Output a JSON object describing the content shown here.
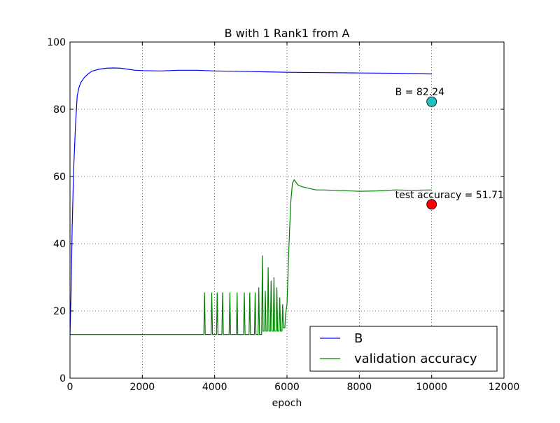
{
  "chart_data": {
    "type": "line",
    "title": "B with 1 Rank1 from A",
    "xlabel": "epoch",
    "ylabel": "",
    "xlim": [
      0,
      12000
    ],
    "ylim": [
      0,
      100
    ],
    "xticks": [
      0,
      2000,
      4000,
      6000,
      8000,
      10000,
      12000
    ],
    "yticks": [
      0,
      20,
      40,
      60,
      80,
      100
    ],
    "xtick_labels": [
      "0",
      "2000",
      "4000",
      "6000",
      "8000",
      "10000",
      "12000"
    ],
    "ytick_labels": [
      "0",
      "20",
      "40",
      "60",
      "80",
      "100"
    ],
    "grid": true,
    "legend_position": "lower-right",
    "series": [
      {
        "name": "B",
        "color": "#0000ff",
        "x": [
          0,
          30,
          60,
          100,
          150,
          200,
          250,
          300,
          400,
          500,
          600,
          800,
          1000,
          1200,
          1400,
          1600,
          1800,
          2000,
          2500,
          3000,
          3500,
          4000,
          5000,
          6000,
          7000,
          8000,
          9000,
          10000
        ],
        "y": [
          13,
          25,
          45,
          62,
          75,
          84,
          86.5,
          88,
          89.5,
          90.5,
          91.3,
          91.9,
          92.2,
          92.3,
          92.2,
          91.9,
          91.6,
          91.5,
          91.4,
          91.6,
          91.6,
          91.4,
          91.2,
          91.0,
          90.9,
          90.8,
          90.7,
          90.5
        ]
      },
      {
        "name": "validation accuracy",
        "color": "#008000",
        "x": [
          0,
          1000,
          2000,
          3000,
          3600,
          3700,
          3720,
          3740,
          3900,
          3920,
          3940,
          4050,
          4070,
          4090,
          4200,
          4220,
          4240,
          4400,
          4420,
          4440,
          4600,
          4620,
          4640,
          4800,
          4820,
          4840,
          4950,
          4970,
          4990,
          5100,
          5120,
          5140,
          5200,
          5220,
          5240,
          5300,
          5320,
          5340,
          5380,
          5400,
          5420,
          5460,
          5480,
          5500,
          5540,
          5560,
          5580,
          5620,
          5640,
          5660,
          5700,
          5720,
          5740,
          5780,
          5800,
          5820,
          5860,
          5880,
          5900,
          5940,
          5960,
          6000,
          6050,
          6100,
          6150,
          6200,
          6300,
          6400,
          6600,
          6800,
          7000,
          7500,
          8000,
          8500,
          9000,
          9500,
          10000
        ],
        "y": [
          13,
          13,
          13,
          13,
          13,
          13,
          25.5,
          13,
          13,
          25.5,
          13,
          13,
          25.5,
          13,
          13,
          25.5,
          13,
          13,
          25.5,
          13,
          13,
          25.5,
          13,
          13,
          25.5,
          13,
          13,
          25.5,
          13,
          13,
          25.5,
          13,
          13,
          27,
          13,
          13,
          36.5,
          14,
          14,
          26,
          14,
          14,
          33,
          14,
          14,
          29,
          14,
          14,
          30,
          14,
          14,
          27,
          14,
          14,
          24,
          14,
          14,
          22,
          15,
          15,
          19,
          22,
          38,
          52,
          58,
          59,
          57.5,
          57,
          56.5,
          56,
          56,
          55.8,
          55.6,
          55.7,
          56,
          55.9,
          56
        ]
      }
    ],
    "points": [
      {
        "x": 10000,
        "y": 82.24,
        "label": "B = 82.24",
        "color": "#20c0c0"
      },
      {
        "x": 10000,
        "y": 51.71,
        "label": "test accuracy = 51.71",
        "color": "#ff0000"
      }
    ]
  }
}
